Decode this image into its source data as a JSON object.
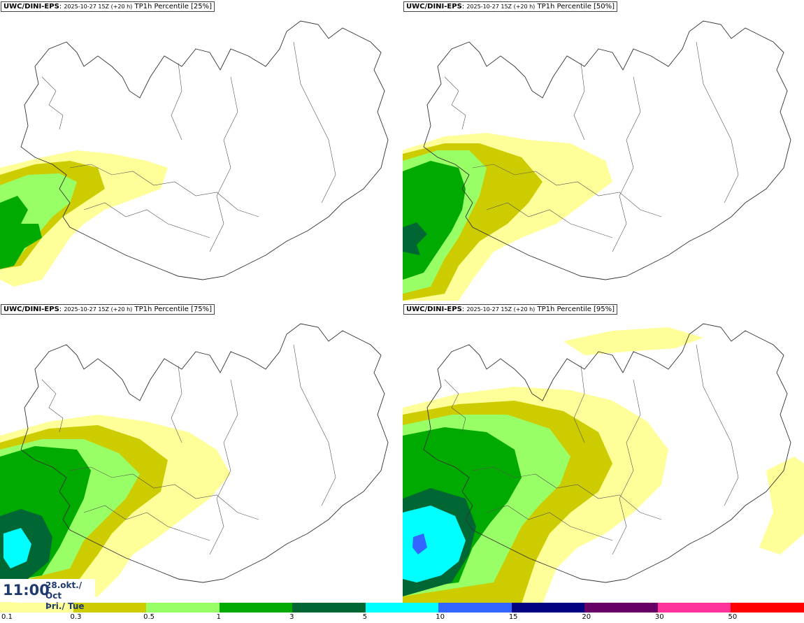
{
  "panels": [
    {
      "model": "UWC/DINI-EPS",
      "run": "2025-10-27 15Z (+20 h)",
      "product": "TP1h Percentile [25%]"
    },
    {
      "model": "UWC/DINI-EPS",
      "run": "2025-10-27 15Z (+20 h)",
      "product": "TP1h Percentile [50%]"
    },
    {
      "model": "UWC/DINI-EPS",
      "run": "2025-10-27 15Z (+20 h)",
      "product": "TP1h Percentile [75%]"
    },
    {
      "model": "UWC/DINI-EPS",
      "run": "2025-10-27 15Z (+20 h)",
      "product": "TP1h Percentile [95%]"
    }
  ],
  "valid_time": {
    "time": "11:00",
    "date": "28.okt./ Oct",
    "day": "Þri./ Tue"
  },
  "legend": {
    "colors": [
      "#ffff99",
      "#cccc00",
      "#99ff66",
      "#00aa00",
      "#006633",
      "#00ffff",
      "#3366ff",
      "#000080",
      "#660066",
      "#ff3399",
      "#ff0000"
    ],
    "ticks": [
      "0.1",
      "0.3",
      "0.5",
      "1",
      "3",
      "5",
      "10",
      "15",
      "20",
      "30",
      "50"
    ]
  }
}
